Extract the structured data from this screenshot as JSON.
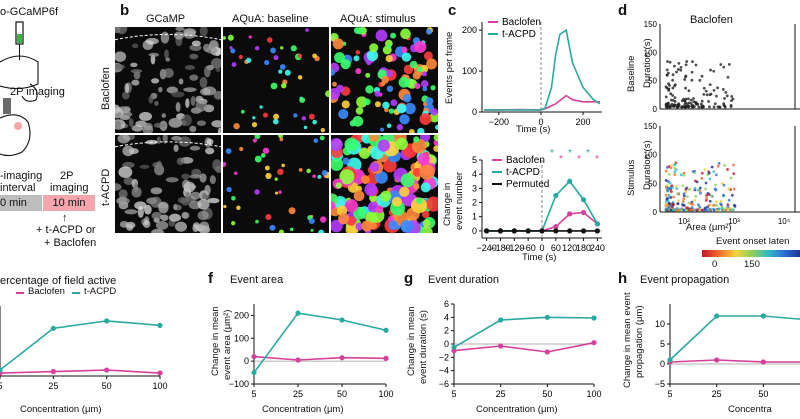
{
  "panel_a": {
    "construct": "o-GCaMP6f",
    "imaging_label": "2P imaging",
    "timeline_left_top": "-imaging",
    "timeline_left_mid": "interval",
    "timeline_left_box": "0 min",
    "timeline_right_top": "2P",
    "timeline_right_mid": "imaging",
    "timeline_right_box": "10 min",
    "drug_line1": "+ t-ACPD or",
    "drug_line2": "+ Baclofen",
    "colors": {
      "pink_box": "#f4a6ad",
      "gray_box": "#bdbdbd"
    }
  },
  "panel_b": {
    "letter": "b",
    "col_titles": [
      "GCaMP",
      "AQuA: baseline",
      "AQuA: stimulus"
    ],
    "row_labels": [
      "Baclofen",
      "t-ACPD"
    ]
  },
  "panel_c": {
    "letter": "c",
    "top_ylabel": "Events per frame",
    "top_xlabel": "Time (s)",
    "bottom_ylabel_1": "Change in",
    "bottom_ylabel_2": "event number",
    "bottom_xlabel": "Time (s)",
    "legend_top": [
      "Baclofen",
      "t-ACPD"
    ],
    "legend_bottom": [
      "Baclofen",
      "t-ACPD",
      "Permuted"
    ],
    "top_xticks": [
      "−200",
      "0",
      "200"
    ],
    "top_yticks": [
      "0",
      "100",
      "200"
    ],
    "bottom_xticks": [
      "−240",
      "−120",
      "0",
      "120",
      "240"
    ],
    "bottom_yticks": [
      "0",
      "1",
      "2",
      "3",
      "4",
      "5"
    ],
    "sig_marks": [
      "*",
      "*",
      "*",
      "*",
      "*",
      "*"
    ]
  },
  "panel_d": {
    "letter": "d",
    "title": "Baclofen",
    "row_labels": [
      "Baseline",
      "Stimulus"
    ],
    "ylabel": "Duration (s)",
    "xlabel": "Area (μm²)",
    "yticks": [
      "0",
      "50",
      "100",
      "150"
    ],
    "xticks": [
      "10²",
      "10³",
      "10⁴"
    ],
    "colorbar_label": "Event onset laten",
    "colorbar_ticks": [
      "0",
      "150"
    ]
  },
  "panels_bottom": [
    {
      "letter": "",
      "title": "ercentage of field active",
      "ylabel_1": "",
      "ylabel_2": ""
    },
    {
      "letter": "f",
      "title": "Event area",
      "ylabel_1": "Change in mean",
      "ylabel_2": "event area (μm²)"
    },
    {
      "letter": "g",
      "title": "Event duration",
      "ylabel_1": "Change in mean",
      "ylabel_2": "event duration (s)"
    },
    {
      "letter": "h",
      "title": "Event propagation",
      "ylabel_1": "Change in mean event",
      "ylabel_2": "propagation (μm)"
    }
  ],
  "bottom_legend": [
    "Baclofen",
    "t-ACPD"
  ],
  "xlabel_conc": "Concentration (μm)",
  "xlabel_conc_cut": "Concentra",
  "colors": {
    "baclofen": "#d63f9a",
    "tacpd": "#2aa9a0",
    "permuted": "#111111"
  },
  "chart_data": [
    {
      "type": "line",
      "title": "Event area",
      "xlabel": "Concentration (μm)",
      "ylabel": "Change in mean event area (μm²)",
      "x": [
        5,
        25,
        50,
        100
      ],
      "ylim": [
        -100,
        250
      ],
      "series": [
        {
          "name": "Baclofen",
          "values": [
            20,
            5,
            15,
            12
          ]
        },
        {
          "name": "t-ACPD",
          "values": [
            -50,
            210,
            180,
            135
          ]
        }
      ]
    },
    {
      "type": "line",
      "title": "Event duration",
      "xlabel": "Concentration (μm)",
      "ylabel": "Change in mean event duration (s)",
      "x": [
        5,
        25,
        50,
        100
      ],
      "ylim": [
        -6,
        6
      ],
      "series": [
        {
          "name": "Baclofen",
          "values": [
            -1,
            -0.3,
            -1.2,
            0.2
          ]
        },
        {
          "name": "t-ACPD",
          "values": [
            -0.5,
            3.6,
            4,
            3.9
          ]
        }
      ]
    },
    {
      "type": "line",
      "title": "Event propagation",
      "xlabel": "Concentration (μm)",
      "ylabel": "Change in mean event propagation (μm)",
      "x": [
        5,
        25,
        50,
        100
      ],
      "ylim": [
        -5,
        15
      ],
      "series": [
        {
          "name": "Baclofen",
          "values": [
            0.5,
            1,
            0.5,
            0.5
          ]
        },
        {
          "name": "t-ACPD",
          "values": [
            1,
            12,
            12,
            11
          ]
        }
      ]
    },
    {
      "type": "line",
      "title": "Percentage of field active",
      "xlabel": "Concentration (μm)",
      "x": [
        5,
        25,
        50,
        100
      ],
      "series": [
        {
          "name": "Baclofen",
          "values": [
            0,
            1,
            2,
            0
          ]
        },
        {
          "name": "t-ACPD",
          "values": [
            2,
            30,
            35,
            32
          ]
        }
      ]
    },
    {
      "type": "line",
      "title": "Events per frame",
      "xlabel": "Time (s)",
      "ylabel": "Events per frame",
      "x": [
        -270,
        -200,
        -100,
        0,
        20,
        50,
        70,
        90,
        120,
        150,
        200,
        250,
        280
      ],
      "ylim": [
        0,
        220
      ],
      "series": [
        {
          "name": "Baclofen",
          "values": [
            5,
            5,
            6,
            5,
            8,
            15,
            20,
            28,
            40,
            30,
            25,
            25,
            25
          ]
        },
        {
          "name": "t-ACPD",
          "values": [
            5,
            5,
            5,
            5,
            10,
            60,
            140,
            190,
            200,
            120,
            60,
            30,
            20
          ]
        }
      ]
    },
    {
      "type": "line",
      "title": "",
      "xlabel": "Time (s)",
      "ylabel": "Change in event number",
      "x": [
        -240,
        -180,
        -120,
        -60,
        0,
        60,
        120,
        180,
        240
      ],
      "ylim": [
        -0.5,
        5
      ],
      "series": [
        {
          "name": "Baclofen",
          "values": [
            0,
            0,
            0,
            0,
            0,
            0.3,
            1.2,
            1.3,
            0.5
          ]
        },
        {
          "name": "t-ACPD",
          "values": [
            0,
            0,
            0,
            0,
            0,
            2.5,
            3.5,
            2.2,
            0.5
          ]
        },
        {
          "name": "Permuted",
          "values": [
            0,
            0,
            0,
            0,
            0,
            0,
            0,
            0,
            0
          ]
        }
      ]
    }
  ]
}
